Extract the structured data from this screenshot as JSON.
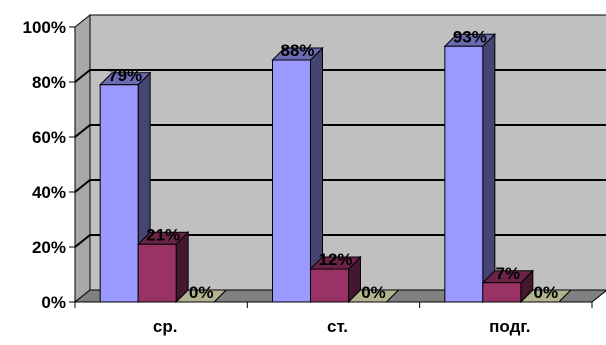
{
  "chart_data": {
    "type": "bar",
    "style": "3d-clustered-column",
    "categories": [
      "ср.",
      "ст.",
      "подг."
    ],
    "series": [
      {
        "values": [
          79,
          88,
          93
        ],
        "labels": [
          "79%",
          "88%",
          "93%"
        ],
        "color": "#9999ff"
      },
      {
        "values": [
          21,
          12,
          7
        ],
        "labels": [
          "21%",
          "12%",
          "7%"
        ],
        "color": "#993366"
      },
      {
        "values": [
          0,
          0,
          0
        ],
        "labels": [
          "0%",
          "0%",
          "0%"
        ],
        "color": "#ffffcc"
      }
    ],
    "y_ticks": [
      "0%",
      "20%",
      "40%",
      "60%",
      "80%",
      "100%"
    ],
    "ylim": [
      0,
      100
    ],
    "grid": true,
    "wall_color": "#c0c0c0",
    "title": "",
    "xlabel": "",
    "ylabel": ""
  }
}
